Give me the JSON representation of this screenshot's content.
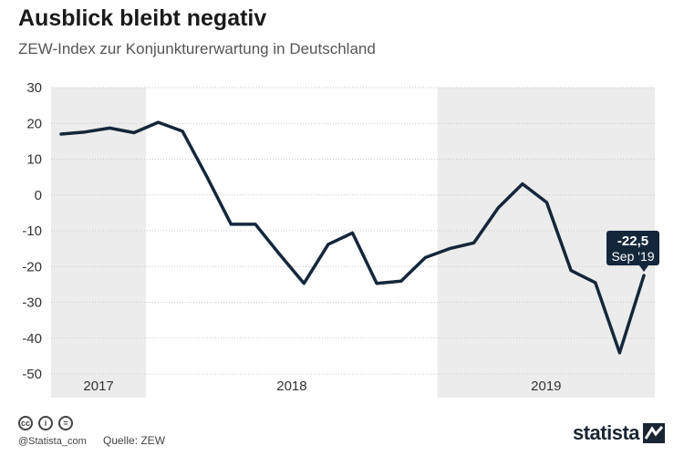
{
  "header": {
    "title": "Ausblick bleibt negativ",
    "subtitle": "ZEW-Index zur Konjunkturerwartung in Deutschland"
  },
  "footer": {
    "handle": "@Statista_com",
    "source": "Quelle: ZEW",
    "brand": "statista",
    "license_icons": [
      "cc-icon",
      "attribution-icon",
      "no-derivatives-icon"
    ]
  },
  "chart_data": {
    "type": "line",
    "title": "Ausblick bleibt negativ",
    "subtitle": "ZEW-Index zur Konjunkturerwartung in Deutschland",
    "xlabel": "",
    "ylabel": "",
    "ylim": [
      -50,
      30
    ],
    "yticks": [
      30,
      20,
      10,
      0,
      -10,
      -20,
      -30,
      -40,
      -50
    ],
    "grid": true,
    "year_bands": [
      {
        "label": "2017",
        "shaded": true,
        "from_index": -2.5,
        "to_index": 3.5
      },
      {
        "label": "2018",
        "shaded": false,
        "from_index": 3.5,
        "to_index": 15.5
      },
      {
        "label": "2019",
        "shaded": true,
        "from_index": 15.5,
        "to_index": 24.5
      }
    ],
    "series": [
      {
        "name": "ZEW-Index",
        "color": "#14263a",
        "values": [
          17.0,
          17.6,
          18.7,
          17.4,
          20.3,
          17.8,
          5.1,
          -8.2,
          -8.2,
          -16.6,
          -24.7,
          -13.8,
          -10.6,
          -24.7,
          -24.1,
          -17.5,
          -15.0,
          -13.4,
          -3.6,
          3.1,
          -2.1,
          -21.1,
          -24.5,
          -44.1,
          -22.5
        ]
      }
    ],
    "callout": {
      "value": "-22,5",
      "label": "Sep '19",
      "index": 24
    }
  },
  "colors": {
    "line": "#14263a",
    "band": "#ececec",
    "grid": "#c8c8c8"
  }
}
